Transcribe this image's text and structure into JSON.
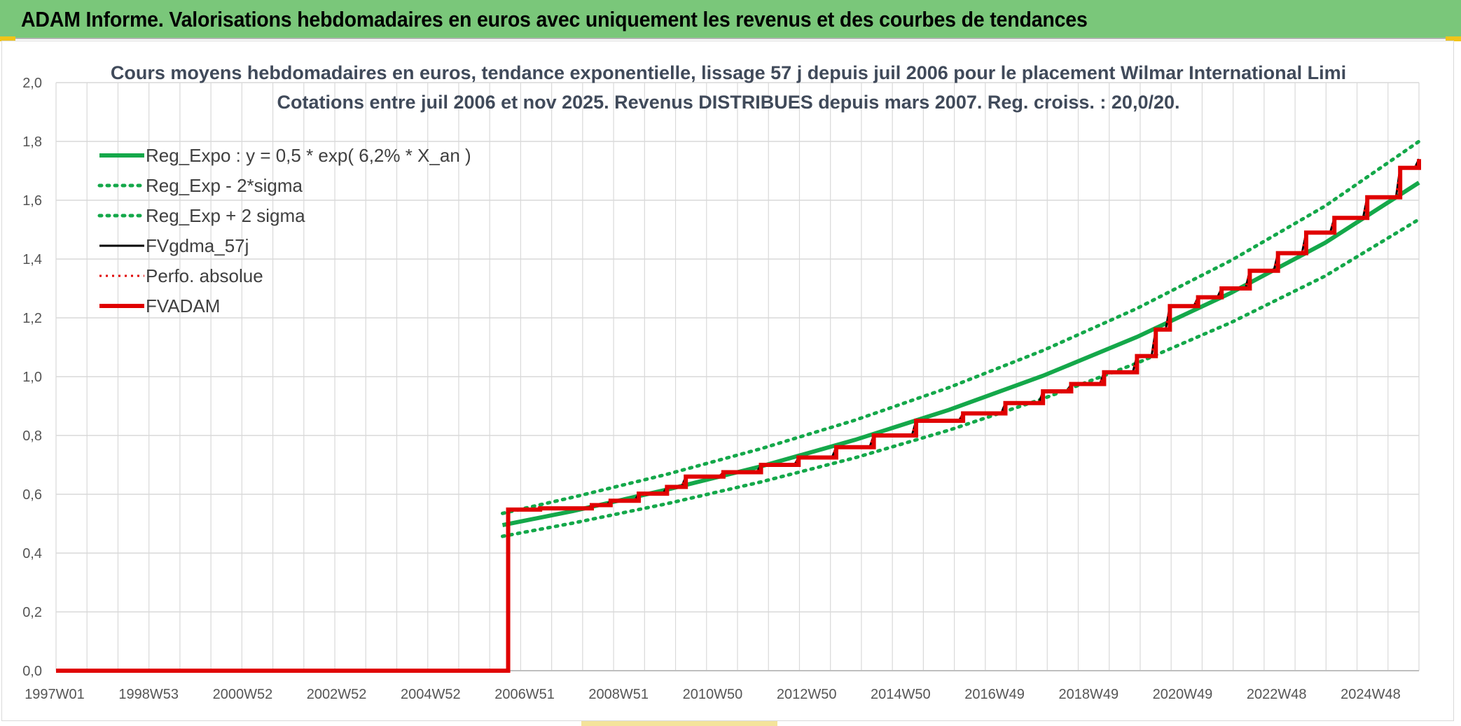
{
  "banner": {
    "title": "ADAM Informe. Valorisations hebdomadaires en euros avec uniquement les revenus et des courbes de tendances"
  },
  "colors": {
    "banner": "#7ac77a",
    "green": "#14a84a",
    "black": "#000000",
    "red": "#e00000",
    "grid": "#d9d9d9"
  },
  "chart_data": {
    "type": "line",
    "title": "Cours moyens hebdomadaires en euros, tendance exponentielle, lissage 57 j depuis juil 2006 pour le placement Wilmar International Limi",
    "subtitle": "Cotations entre juil 2006 et nov 2025. Revenus DISTRIBUES depuis mars 2007. Reg. croiss. : 20,0/20.",
    "ylim": [
      0,
      2.0
    ],
    "xlim": [
      1997.0,
      2026.0
    ],
    "y_ticks": [
      "0,0",
      "0,2",
      "0,4",
      "0,6",
      "0,8",
      "1,0",
      "1,2",
      "1,4",
      "1,6",
      "1,8",
      "2,0"
    ],
    "x_ticks": [
      {
        "label": "1997W01",
        "x": 1997.0
      },
      {
        "label": "1998W53",
        "x": 1999.0
      },
      {
        "label": "2000W52",
        "x": 2001.0
      },
      {
        "label": "2002W52",
        "x": 2003.0
      },
      {
        "label": "2004W52",
        "x": 2005.0
      },
      {
        "label": "2006W51",
        "x": 2007.0
      },
      {
        "label": "2008W51",
        "x": 2009.0
      },
      {
        "label": "2010W50",
        "x": 2011.0
      },
      {
        "label": "2012W50",
        "x": 2013.0
      },
      {
        "label": "2014W50",
        "x": 2015.0
      },
      {
        "label": "2016W49",
        "x": 2017.0
      },
      {
        "label": "2018W49",
        "x": 2019.0
      },
      {
        "label": "2020W49",
        "x": 2021.0
      },
      {
        "label": "2022W48",
        "x": 2023.0
      },
      {
        "label": "2024W48",
        "x": 2025.0
      }
    ],
    "grid": true,
    "legend_position": "top-left",
    "series": [
      {
        "name": "Reg_Expo : y = 0,5 * exp( 6,2% *  X_an )",
        "style": "solid-green",
        "x": [
          2006.5,
          2008.0,
          2010.0,
          2012.0,
          2014.0,
          2016.0,
          2018.0,
          2020.0,
          2022.0,
          2024.0,
          2026.0
        ],
        "values": [
          0.495,
          0.543,
          0.616,
          0.695,
          0.785,
          0.887,
          1.003,
          1.135,
          1.285,
          1.455,
          1.66
        ]
      },
      {
        "name": "Reg_Exp - 2*sigma",
        "style": "dotted-green",
        "x": [
          2006.5,
          2008.0,
          2010.0,
          2012.0,
          2014.0,
          2016.0,
          2018.0,
          2020.0,
          2022.0,
          2024.0,
          2026.0
        ],
        "values": [
          0.457,
          0.502,
          0.568,
          0.642,
          0.724,
          0.818,
          0.925,
          1.046,
          1.184,
          1.342,
          1.535
        ]
      },
      {
        "name": "Reg_Exp + 2 sigma",
        "style": "dotted-green",
        "x": [
          2006.5,
          2008.0,
          2010.0,
          2012.0,
          2014.0,
          2016.0,
          2018.0,
          2020.0,
          2022.0,
          2024.0,
          2026.0
        ],
        "values": [
          0.535,
          0.59,
          0.668,
          0.755,
          0.852,
          0.963,
          1.089,
          1.232,
          1.395,
          1.58,
          1.8
        ]
      },
      {
        "name": "FVgdma_57j",
        "style": "solid-black",
        "x": [
          1997.0,
          2006.6,
          2006.62,
          2007.3,
          2008.4,
          2008.8,
          2009.4,
          2010.0,
          2010.4,
          2011.2,
          2012.0,
          2012.8,
          2013.6,
          2014.4,
          2015.3,
          2016.3,
          2017.2,
          2018.0,
          2018.6,
          2019.3,
          2020.0,
          2020.4,
          2020.7,
          2021.3,
          2021.8,
          2022.4,
          2023.0,
          2023.6,
          2024.2,
          2024.9,
          2025.6,
          2026.0
        ],
        "values": [
          0.0,
          0.0,
          0.548,
          0.552,
          0.563,
          0.578,
          0.602,
          0.625,
          0.66,
          0.675,
          0.7,
          0.725,
          0.76,
          0.8,
          0.85,
          0.875,
          0.91,
          0.95,
          0.975,
          1.015,
          1.07,
          1.16,
          1.24,
          1.27,
          1.3,
          1.36,
          1.42,
          1.49,
          1.54,
          1.61,
          1.71,
          1.74
        ]
      },
      {
        "name": "Perfo. absolue",
        "style": "dotted-red",
        "x": [
          1997.0,
          2006.6,
          2006.62,
          2007.3,
          2008.4,
          2008.8,
          2009.4,
          2010.0,
          2010.4,
          2011.2,
          2012.0,
          2012.8,
          2013.6,
          2014.4,
          2015.3,
          2016.3,
          2017.2,
          2018.0,
          2018.6,
          2019.3,
          2020.0,
          2020.4,
          2020.7,
          2021.3,
          2021.8,
          2022.4,
          2023.0,
          2023.6,
          2024.2,
          2024.9,
          2025.6,
          2026.0
        ],
        "values": [
          0.0,
          0.0,
          0.548,
          0.552,
          0.563,
          0.578,
          0.602,
          0.625,
          0.66,
          0.675,
          0.7,
          0.725,
          0.76,
          0.8,
          0.85,
          0.875,
          0.91,
          0.95,
          0.975,
          1.015,
          1.07,
          1.16,
          1.24,
          1.27,
          1.3,
          1.36,
          1.42,
          1.49,
          1.54,
          1.61,
          1.71,
          1.74
        ]
      },
      {
        "name": "FVADAM",
        "style": "solid-red-step",
        "x": [
          1997.0,
          2006.6,
          2006.62,
          2007.3,
          2008.4,
          2008.8,
          2009.4,
          2010.0,
          2010.4,
          2011.2,
          2012.0,
          2012.8,
          2013.6,
          2014.4,
          2015.3,
          2016.3,
          2017.2,
          2018.0,
          2018.6,
          2019.3,
          2020.0,
          2020.4,
          2020.7,
          2021.3,
          2021.8,
          2022.4,
          2023.0,
          2023.6,
          2024.2,
          2024.9,
          2025.6,
          2026.0
        ],
        "values": [
          0.0,
          0.0,
          0.548,
          0.552,
          0.563,
          0.578,
          0.602,
          0.625,
          0.66,
          0.675,
          0.7,
          0.725,
          0.76,
          0.8,
          0.85,
          0.875,
          0.91,
          0.95,
          0.975,
          1.015,
          1.07,
          1.16,
          1.24,
          1.27,
          1.3,
          1.36,
          1.42,
          1.49,
          1.54,
          1.61,
          1.71,
          1.74
        ]
      }
    ]
  }
}
